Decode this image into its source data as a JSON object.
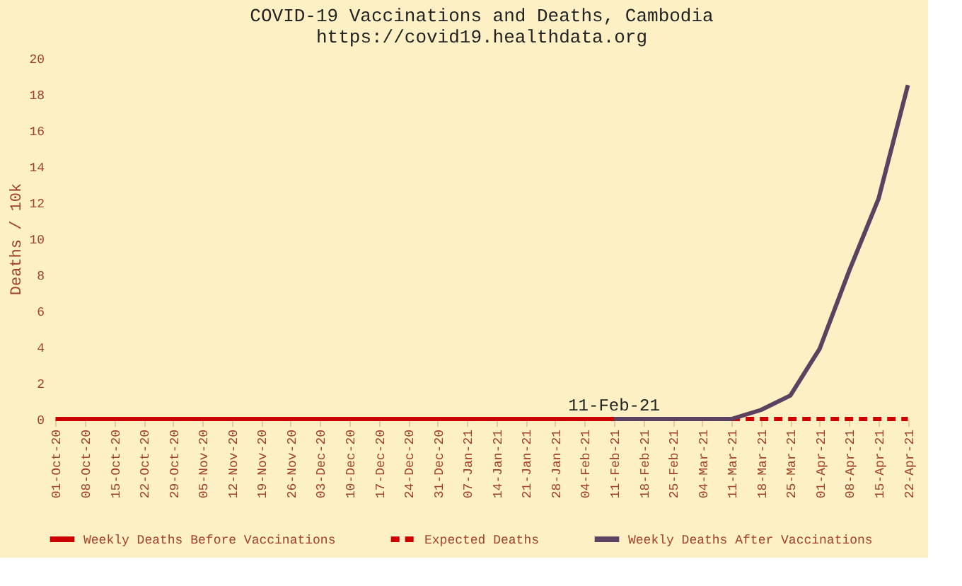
{
  "chart_data": {
    "type": "line",
    "title": "COVID-19 Vaccinations and Deaths, Cambodia",
    "subtitle": "https://covid19.healthdata.org",
    "ylabel": "Deaths / 10k",
    "categories": [
      "01-Oct-20",
      "08-Oct-20",
      "15-Oct-20",
      "22-Oct-20",
      "29-Oct-20",
      "05-Nov-20",
      "12-Nov-20",
      "19-Nov-20",
      "26-Nov-20",
      "03-Dec-20",
      "10-Dec-20",
      "17-Dec-20",
      "24-Dec-20",
      "31-Dec-20",
      "07-Jan-21",
      "14-Jan-21",
      "21-Jan-21",
      "28-Jan-21",
      "04-Feb-21",
      "11-Feb-21",
      "18-Feb-21",
      "25-Feb-21",
      "04-Mar-21",
      "11-Mar-21",
      "18-Mar-21",
      "25-Mar-21",
      "01-Apr-21",
      "08-Apr-21",
      "15-Apr-21",
      "22-Apr-21"
    ],
    "series": [
      {
        "name": "Weekly Deaths Before Vaccinations",
        "color": "#cc0000",
        "line_style": "solid",
        "values": [
          0,
          0,
          0,
          0,
          0,
          0,
          0,
          0,
          0,
          0,
          0,
          0,
          0,
          0,
          0,
          0,
          0,
          0,
          0,
          0,
          null,
          null,
          null,
          null,
          null,
          null,
          null,
          null,
          null,
          null
        ]
      },
      {
        "name": "Expected Deaths",
        "color": "#cc0000",
        "line_style": "dashed",
        "values": [
          null,
          null,
          null,
          null,
          null,
          null,
          null,
          null,
          null,
          null,
          null,
          null,
          null,
          null,
          null,
          null,
          null,
          null,
          null,
          null,
          null,
          null,
          null,
          0,
          0,
          0,
          0,
          0,
          0,
          0
        ]
      },
      {
        "name": "Weekly Deaths After Vaccinations",
        "color": "#5c4160",
        "line_style": "solid",
        "values": [
          null,
          null,
          null,
          null,
          null,
          null,
          null,
          null,
          null,
          null,
          null,
          null,
          null,
          null,
          null,
          null,
          null,
          null,
          null,
          0,
          0,
          0,
          0,
          0,
          0.5,
          1.3,
          3.9,
          8.2,
          12.2,
          18.5
        ]
      }
    ],
    "annotations": [
      {
        "text": "11-Feb-21",
        "x": "11-Feb-21",
        "y": 0
      }
    ],
    "ylim": [
      0,
      20
    ],
    "yticks": [
      0,
      2,
      4,
      6,
      8,
      10,
      12,
      14,
      16,
      18,
      20
    ],
    "grid": false,
    "legend": "bottom"
  }
}
